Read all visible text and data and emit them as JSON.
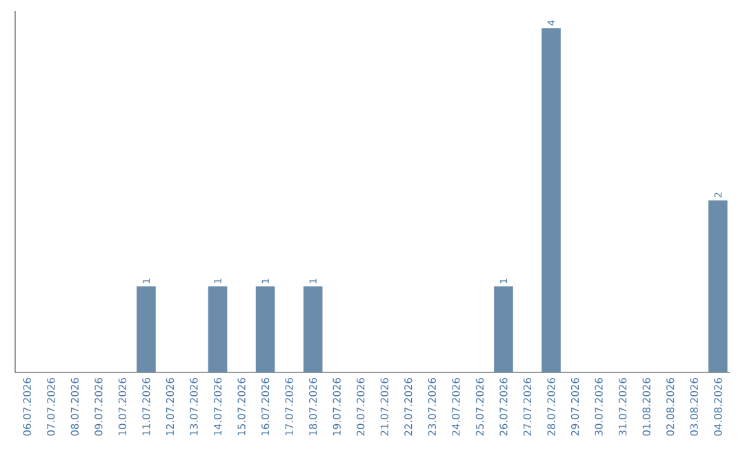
{
  "chart_data": {
    "type": "bar",
    "categories": [
      "06.07.2026",
      "07.07.2026",
      "08.07.2026",
      "09.07.2026",
      "10.07.2026",
      "11.07.2026",
      "12.07.2026",
      "13.07.2026",
      "14.07.2026",
      "15.07.2026",
      "16.07.2026",
      "17.07.2026",
      "18.07.2026",
      "19.07.2026",
      "20.07.2026",
      "21.07.2026",
      "22.07.2026",
      "23.07.2026",
      "24.07.2026",
      "25.07.2026",
      "26.07.2026",
      "27.07.2026",
      "28.07.2026",
      "29.07.2026",
      "30.07.2026",
      "31.07.2026",
      "01.08.2026",
      "02.08.2026",
      "03.08.2026",
      "04.08.2026"
    ],
    "values": [
      0,
      0,
      0,
      0,
      0,
      1,
      0,
      0,
      1,
      0,
      1,
      0,
      1,
      0,
      0,
      0,
      0,
      0,
      0,
      0,
      1,
      0,
      4,
      0,
      0,
      0,
      0,
      0,
      0,
      2
    ],
    "value_labels": [
      null,
      null,
      null,
      null,
      null,
      "1",
      null,
      null,
      "1",
      null,
      "1",
      null,
      "1",
      null,
      null,
      null,
      null,
      null,
      null,
      null,
      "1",
      null,
      "4",
      null,
      null,
      null,
      null,
      null,
      null,
      "2"
    ],
    "color": "#6b8cab"
  }
}
